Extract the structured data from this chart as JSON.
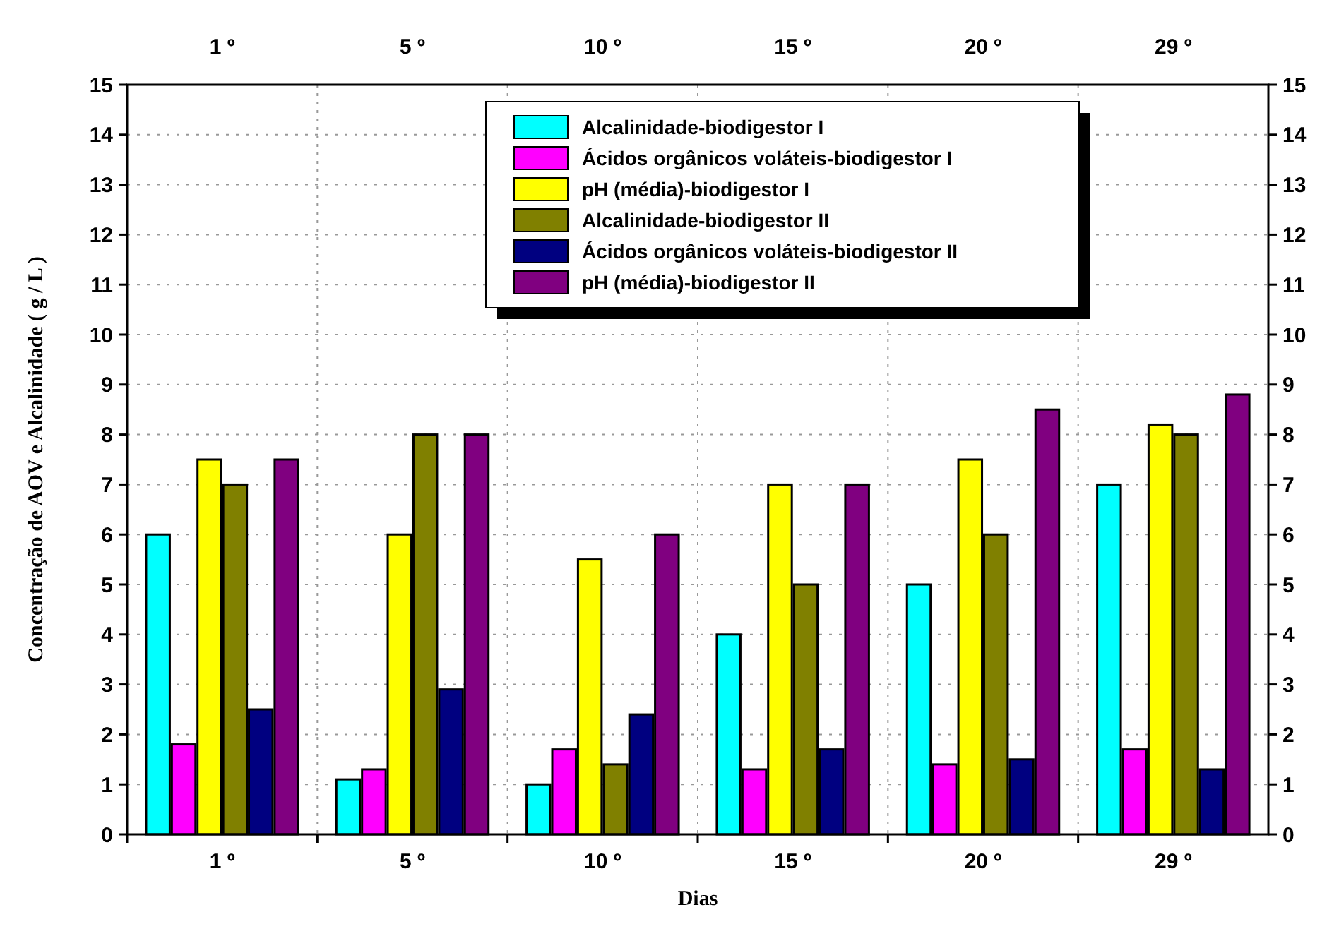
{
  "chart_data": {
    "type": "bar",
    "xlabel": "Dias",
    "ylabel": "Concentração de AOV e Alcalinidade ( g / L )",
    "categories": [
      "1 º",
      "5 º",
      "10 º",
      "15 º",
      "20 º",
      "29 º"
    ],
    "series": [
      {
        "name": "Alcalinidade-biodigestor I",
        "color": "#00ffff",
        "values": [
          6,
          1.1,
          1,
          4,
          5,
          7
        ]
      },
      {
        "name": "Ácidos orgânicos voláteis-biodigestor I",
        "color": "#ff00ff",
        "values": [
          1.8,
          1.3,
          1.7,
          1.3,
          1.4,
          1.7
        ]
      },
      {
        "name": "pH (média)-biodigestor I",
        "color": "#ffff00",
        "values": [
          7.5,
          6,
          5.5,
          7,
          7.5,
          8.2
        ]
      },
      {
        "name": "Alcalinidade-biodigestor II",
        "color": "#808000",
        "values": [
          7,
          8,
          1.4,
          5,
          6,
          8
        ]
      },
      {
        "name": "Ácidos orgânicos voláteis-biodigestor II",
        "color": "#000080",
        "values": [
          2.5,
          2.9,
          2.4,
          1.7,
          1.5,
          1.3
        ]
      },
      {
        "name": "pH (média)-biodigestor II",
        "color": "#800080",
        "values": [
          7.5,
          8,
          6,
          7,
          8.5,
          8.8
        ]
      }
    ],
    "ylim": [
      0,
      15
    ],
    "yticks": [
      0,
      1,
      2,
      3,
      4,
      5,
      6,
      7,
      8,
      9,
      10,
      11,
      12,
      13,
      14,
      15
    ],
    "y2lim": [
      0,
      15
    ],
    "y2ticks": [
      0,
      1,
      2,
      3,
      4,
      5,
      6,
      7,
      8,
      9,
      10,
      11,
      12,
      13,
      14,
      15
    ],
    "grid": true,
    "legend": "top"
  }
}
